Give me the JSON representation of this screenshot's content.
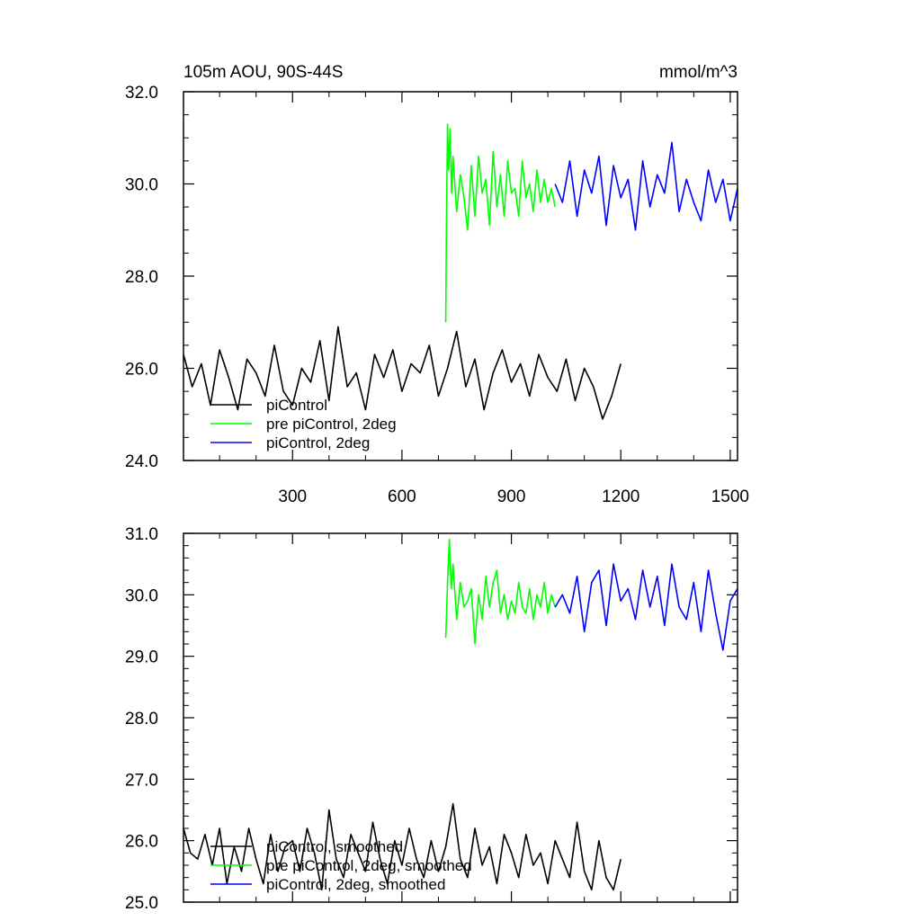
{
  "header": {
    "title": "105m AOU, 90S-44S",
    "units": "mmol/m^3"
  },
  "colors": {
    "piControl": "#000000",
    "pre_piControl_2deg": "#00ff00",
    "piControl_2deg": "#0000ff"
  },
  "chart_data": [
    {
      "type": "line",
      "title": "105m AOU, 90S-44S",
      "units": "mmol/m^3",
      "xlim": [
        1,
        1520
      ],
      "ylim": [
        24.0,
        32.0
      ],
      "xticks": [
        300,
        600,
        900,
        1200,
        1500
      ],
      "xtick_labels": [
        "300",
        "600",
        "900",
        "1200",
        "1500"
      ],
      "yticks": [
        24.0,
        26.0,
        28.0,
        30.0,
        32.0
      ],
      "ytick_labels": [
        "24.0",
        "26.0",
        "28.0",
        "30.0",
        "32.0"
      ],
      "legend_position": "bottom-left",
      "legend_labels": [
        "piControl",
        "pre piControl, 2deg",
        "piControl, 2deg"
      ],
      "series": [
        {
          "name": "piControl",
          "color": "#000000",
          "x": [
            1,
            25,
            50,
            75,
            100,
            125,
            150,
            175,
            200,
            225,
            250,
            275,
            300,
            325,
            350,
            375,
            400,
            425,
            450,
            475,
            500,
            525,
            550,
            575,
            600,
            625,
            650,
            675,
            700,
            725,
            750,
            775,
            800,
            825,
            850,
            875,
            900,
            925,
            950,
            975,
            1000,
            1025,
            1050,
            1075,
            1100,
            1125,
            1150,
            1175,
            1200
          ],
          "y": [
            26.3,
            25.6,
            26.1,
            25.2,
            26.4,
            25.8,
            25.1,
            26.2,
            25.9,
            25.4,
            26.5,
            25.5,
            25.2,
            26.0,
            25.7,
            26.6,
            25.3,
            26.9,
            25.6,
            25.9,
            25.1,
            26.3,
            25.8,
            26.4,
            25.5,
            26.1,
            25.9,
            26.5,
            25.4,
            26.0,
            26.8,
            25.6,
            26.2,
            25.1,
            25.9,
            26.4,
            25.7,
            26.1,
            25.4,
            26.3,
            25.8,
            25.5,
            26.2,
            25.3,
            26.0,
            25.6,
            24.9,
            25.4,
            26.1
          ]
        },
        {
          "name": "pre piControl, 2deg",
          "color": "#00ff00",
          "x": [
            720,
            722,
            725,
            728,
            732,
            736,
            740,
            750,
            760,
            770,
            780,
            790,
            800,
            810,
            820,
            830,
            840,
            850,
            860,
            870,
            880,
            890,
            900,
            910,
            920,
            930,
            940,
            950,
            960,
            970,
            980,
            990,
            1000,
            1010,
            1020
          ],
          "y": [
            27.0,
            29.2,
            31.3,
            30.3,
            31.2,
            29.8,
            30.6,
            29.4,
            30.2,
            29.7,
            29.0,
            30.4,
            29.3,
            30.6,
            29.8,
            30.1,
            29.1,
            30.7,
            29.5,
            30.2,
            29.3,
            30.5,
            29.8,
            29.9,
            29.3,
            30.5,
            29.7,
            30.0,
            29.4,
            30.3,
            29.6,
            30.1,
            29.6,
            29.9,
            29.5
          ]
        },
        {
          "name": "piControl, 2deg",
          "color": "#0000ff",
          "x": [
            1020,
            1040,
            1060,
            1080,
            1100,
            1120,
            1140,
            1160,
            1180,
            1200,
            1220,
            1240,
            1260,
            1280,
            1300,
            1320,
            1340,
            1360,
            1380,
            1400,
            1420,
            1440,
            1460,
            1480,
            1500,
            1520
          ],
          "y": [
            30.0,
            29.6,
            30.5,
            29.3,
            30.3,
            29.8,
            30.6,
            29.1,
            30.4,
            29.7,
            30.1,
            29.0,
            30.5,
            29.5,
            30.2,
            29.8,
            30.9,
            29.4,
            30.1,
            29.6,
            29.2,
            30.3,
            29.6,
            30.1,
            29.2,
            29.9
          ]
        }
      ]
    },
    {
      "type": "line",
      "xlim": [
        1,
        1520
      ],
      "ylim": [
        25.0,
        31.0
      ],
      "yticks": [
        25.0,
        26.0,
        27.0,
        28.0,
        29.0,
        30.0,
        31.0
      ],
      "ytick_labels": [
        "25.0",
        "26.0",
        "27.0",
        "28.0",
        "29.0",
        "30.0",
        "31.0"
      ],
      "legend_position": "bottom-left",
      "legend_labels": [
        "piControl, smoothed",
        "pre piControl, 2deg, smoothed",
        "piControl, 2deg, smoothed"
      ],
      "series": [
        {
          "name": "piControl, smoothed",
          "color": "#000000",
          "x": [
            1,
            20,
            40,
            60,
            80,
            100,
            120,
            140,
            160,
            180,
            200,
            220,
            240,
            260,
            280,
            300,
            320,
            340,
            360,
            380,
            400,
            420,
            440,
            460,
            480,
            500,
            520,
            540,
            560,
            580,
            600,
            620,
            640,
            660,
            680,
            700,
            720,
            740,
            760,
            780,
            800,
            820,
            840,
            860,
            880,
            900,
            920,
            940,
            960,
            980,
            1000,
            1020,
            1040,
            1060,
            1080,
            1100,
            1120,
            1140,
            1160,
            1180,
            1200
          ],
          "y": [
            26.2,
            25.8,
            25.7,
            26.1,
            25.6,
            26.2,
            25.3,
            25.9,
            25.5,
            26.2,
            25.7,
            25.3,
            26.1,
            25.5,
            25.9,
            26.0,
            25.5,
            26.2,
            25.8,
            25.2,
            26.5,
            25.7,
            25.4,
            26.1,
            25.8,
            25.5,
            26.3,
            25.7,
            25.3,
            26.0,
            25.6,
            26.2,
            25.7,
            25.4,
            26.0,
            25.5,
            25.9,
            26.6,
            25.7,
            25.4,
            26.2,
            25.6,
            25.9,
            25.3,
            26.1,
            25.8,
            25.4,
            26.1,
            25.6,
            25.8,
            25.3,
            26.0,
            25.7,
            25.4,
            26.3,
            25.5,
            25.2,
            26.0,
            25.4,
            25.2,
            25.7
          ]
        },
        {
          "name": "pre piControl, 2deg, smoothed",
          "color": "#00ff00",
          "x": [
            720,
            725,
            730,
            735,
            740,
            750,
            760,
            770,
            780,
            790,
            800,
            810,
            820,
            830,
            840,
            850,
            860,
            870,
            880,
            890,
            900,
            910,
            920,
            930,
            940,
            950,
            960,
            970,
            980,
            990,
            1000,
            1010,
            1020
          ],
          "y": [
            29.3,
            30.2,
            30.9,
            30.1,
            30.5,
            29.6,
            30.2,
            29.8,
            29.9,
            30.1,
            29.2,
            30.0,
            29.6,
            30.3,
            29.8,
            30.2,
            30.4,
            29.7,
            30.0,
            29.6,
            29.9,
            29.7,
            30.2,
            29.8,
            29.7,
            30.1,
            29.6,
            30.0,
            29.8,
            30.2,
            29.7,
            30.0,
            29.8
          ]
        },
        {
          "name": "piControl, 2deg, smoothed",
          "color": "#0000ff",
          "x": [
            1020,
            1040,
            1060,
            1080,
            1100,
            1120,
            1140,
            1160,
            1180,
            1200,
            1220,
            1240,
            1260,
            1280,
            1300,
            1320,
            1340,
            1360,
            1380,
            1400,
            1420,
            1440,
            1460,
            1480,
            1500,
            1520
          ],
          "y": [
            29.8,
            30.0,
            29.7,
            30.3,
            29.4,
            30.2,
            30.4,
            29.5,
            30.5,
            29.9,
            30.1,
            29.6,
            30.4,
            29.8,
            30.3,
            29.5,
            30.5,
            29.8,
            29.6,
            30.2,
            29.4,
            30.4,
            29.7,
            29.1,
            29.9,
            30.1
          ]
        }
      ]
    }
  ]
}
